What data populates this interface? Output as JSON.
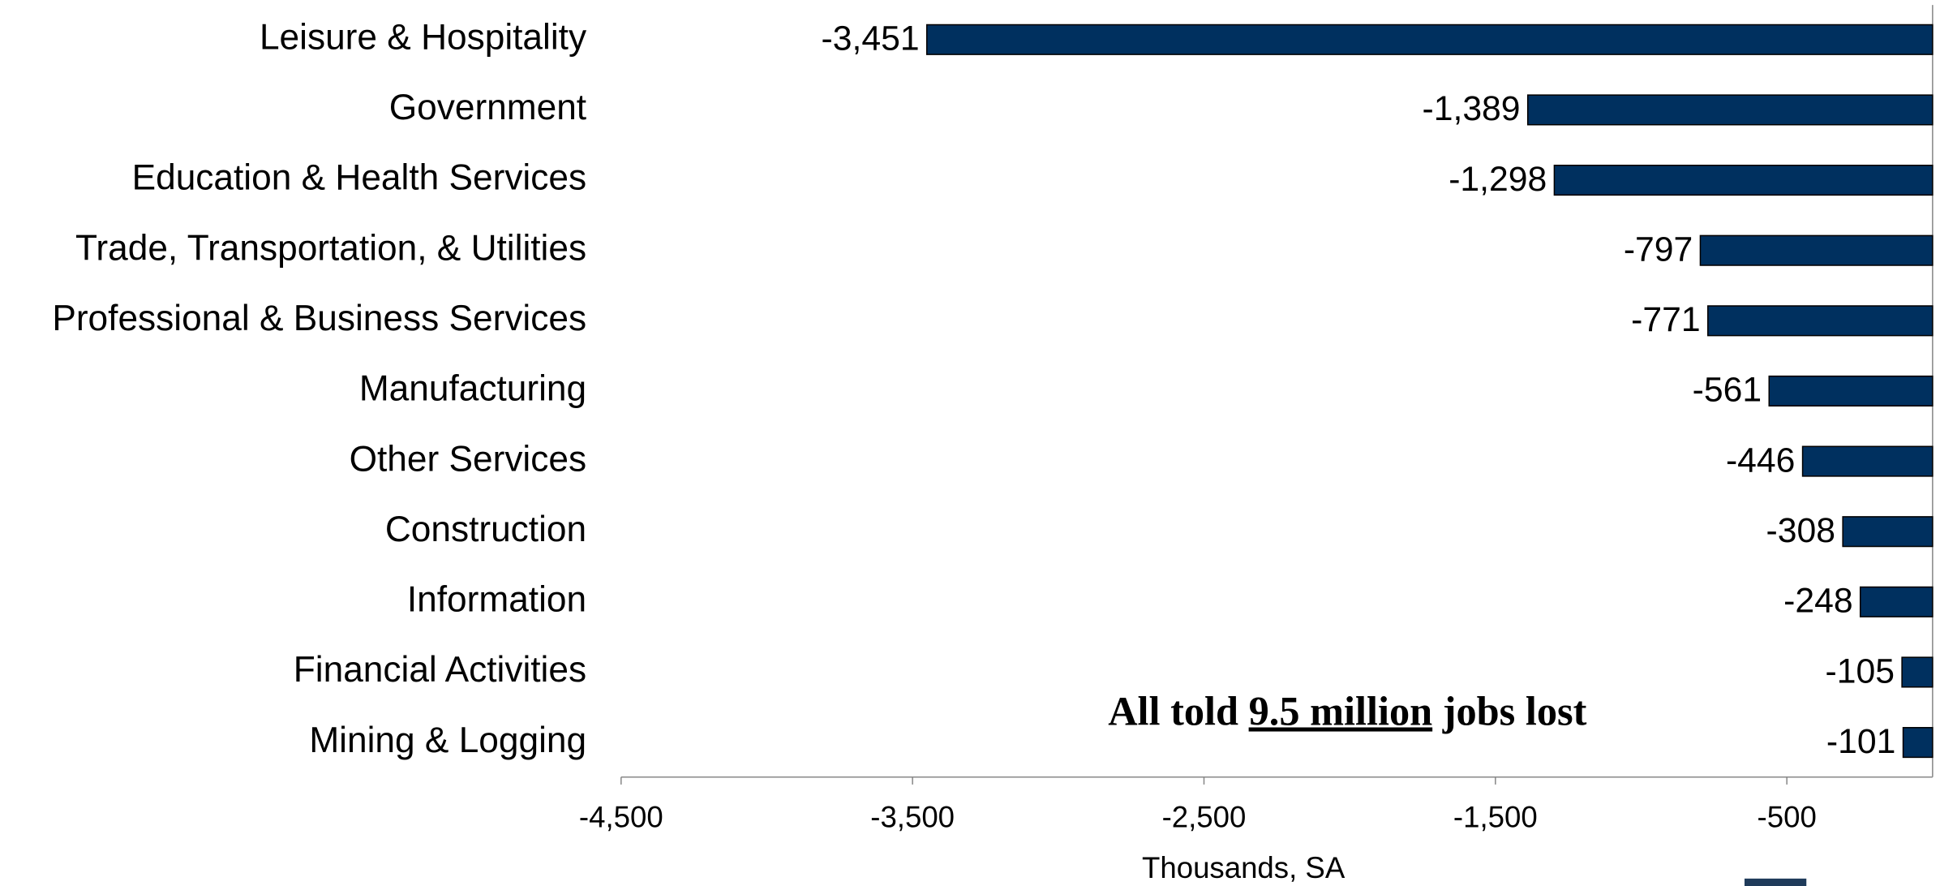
{
  "chart_data": {
    "type": "bar",
    "orientation": "horizontal",
    "categories": [
      "Leisure & Hospitality",
      "Government",
      "Education & Health Services",
      "Trade, Transportation, & Utilities",
      "Professional & Business Services",
      "Manufacturing",
      "Other Services",
      "Construction",
      "Information",
      "Financial Activities",
      "Mining & Logging"
    ],
    "values": [
      -3451,
      -1389,
      -1298,
      -797,
      -771,
      -561,
      -446,
      -308,
      -248,
      -105,
      -101
    ],
    "value_labels": [
      "-3,451",
      "-1,389",
      "-1,298",
      "-797",
      "-771",
      "-561",
      "-446",
      "-308",
      "-248",
      "-105",
      "-101"
    ],
    "color": "#00305f",
    "xlim": [
      -4500,
      0
    ],
    "xticks": [
      {
        "value": -4500,
        "label": "-4,500"
      },
      {
        "value": -3500,
        "label": "-3,500"
      },
      {
        "value": -2500,
        "label": "-2,500"
      },
      {
        "value": -1500,
        "label": "-1,500"
      },
      -500
    ],
    "x_label": "Thousands, SA",
    "annotation": {
      "before": "All told ",
      "emphasis": "9.5 million",
      "after": " jobs lost"
    },
    "grid": false
  }
}
